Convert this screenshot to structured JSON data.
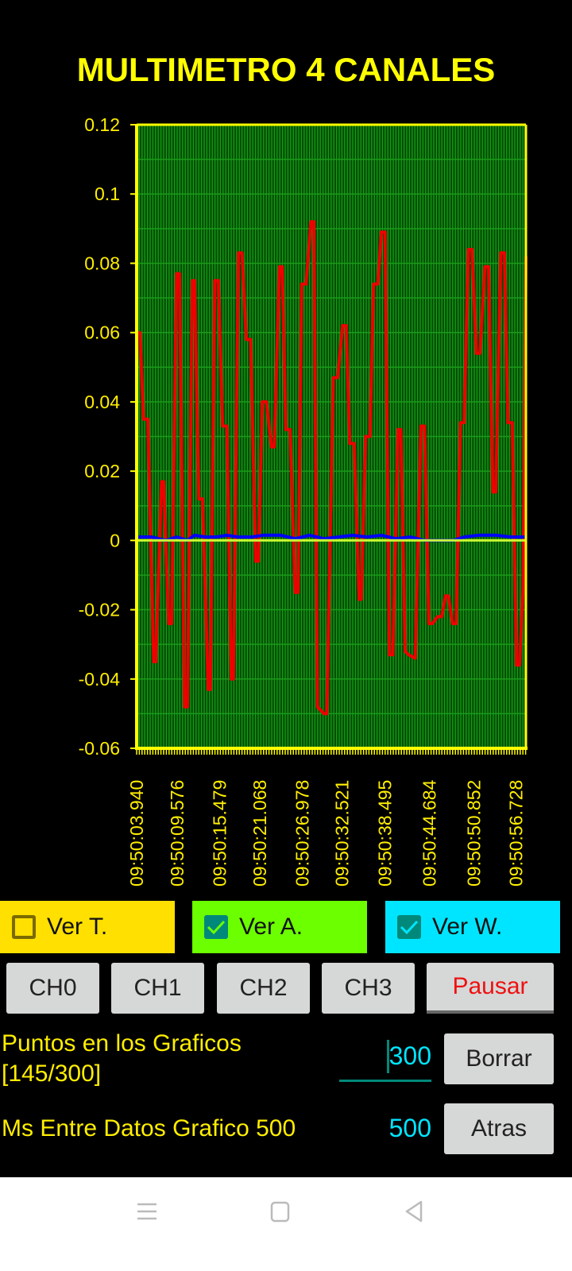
{
  "title": "MULTIMETRO 4 CANALES",
  "checkboxes": [
    {
      "label": "Ver T.",
      "checked": false,
      "color": "#ffe000"
    },
    {
      "label": "Ver A.",
      "checked": true,
      "color": "#6cff00"
    },
    {
      "label": "Ver W.",
      "checked": true,
      "color": "#00e5ff"
    }
  ],
  "channels": [
    "CH0",
    "CH1",
    "CH2",
    "CH3"
  ],
  "pause_label": "Pausar",
  "pause_color": "#ee1111",
  "points": {
    "label": "Puntos en los Graficos",
    "count": "[145/300]",
    "input_value": "300"
  },
  "ms": {
    "label": "Ms Entre Datos Grafico 500",
    "value": "500"
  },
  "clear_label": "Borrar",
  "back_label": "Atras",
  "nav_icons": [
    "menu-icon",
    "home-square-icon",
    "back-triangle-icon"
  ],
  "chart_data": {
    "type": "line",
    "title": "",
    "ylim": [
      -0.06,
      0.12
    ],
    "y_ticks": [
      "0.12",
      "0.1",
      "0.08",
      "0.06",
      "0.04",
      "0.02",
      "0",
      "-0.02",
      "-0.04",
      "-0.06"
    ],
    "y_tick_values": [
      0.12,
      0.1,
      0.08,
      0.06,
      0.04,
      0.02,
      0,
      -0.02,
      -0.04,
      -0.06
    ],
    "x_tick_labels": [
      "09:50:03.940",
      "09:50:09.576",
      "09:50:15.479",
      "09:50:21.068",
      "09:50:26.978",
      "09:50:32.521",
      "09:50:38.495",
      "09:50:44.684",
      "09:50:50.852",
      "09:50:56.728"
    ],
    "x_tick_seconds": [
      3.94,
      9.576,
      15.479,
      21.068,
      26.978,
      32.521,
      38.495,
      44.684,
      50.852,
      56.728
    ],
    "xlim_seconds": [
      3.94,
      58.1
    ],
    "grid": true,
    "plot_bg": "#004d00",
    "grid_color": "#1a9a1a",
    "axis_color": "#ffff00",
    "series": [
      {
        "color": "#ee0000",
        "points": [
          [
            3.9,
            0.06
          ],
          [
            4.4,
            0.06
          ],
          [
            4.9,
            0.035
          ],
          [
            5.5,
            0.035
          ],
          [
            6.3,
            -0.035
          ],
          [
            6.6,
            -0.035
          ],
          [
            7.4,
            0.017
          ],
          [
            7.7,
            0.017
          ],
          [
            8.4,
            -0.024
          ],
          [
            8.8,
            -0.024
          ],
          [
            9.5,
            0.077
          ],
          [
            9.9,
            0.077
          ],
          [
            10.6,
            -0.048
          ],
          [
            11.0,
            -0.048
          ],
          [
            11.7,
            0.075
          ],
          [
            12.0,
            0.075
          ],
          [
            12.6,
            0.012
          ],
          [
            13.1,
            0.012
          ],
          [
            13.9,
            -0.043
          ],
          [
            14.2,
            -0.043
          ],
          [
            14.8,
            0.075
          ],
          [
            15.3,
            0.075
          ],
          [
            15.9,
            0.033
          ],
          [
            16.5,
            0.033
          ],
          [
            17.1,
            -0.04
          ],
          [
            17.4,
            -0.04
          ],
          [
            18.1,
            0.083
          ],
          [
            18.6,
            0.083
          ],
          [
            19.2,
            0.058
          ],
          [
            19.8,
            0.058
          ],
          [
            20.5,
            -0.006
          ],
          [
            20.9,
            -0.006
          ],
          [
            21.4,
            0.04
          ],
          [
            22.0,
            0.04
          ],
          [
            22.7,
            0.027
          ],
          [
            23.1,
            0.027
          ],
          [
            23.8,
            0.079
          ],
          [
            24.2,
            0.079
          ],
          [
            24.7,
            0.032
          ],
          [
            25.3,
            0.032
          ],
          [
            26.0,
            -0.015
          ],
          [
            26.4,
            -0.015
          ],
          [
            26.9,
            0.074
          ],
          [
            27.5,
            0.074
          ],
          [
            28.2,
            0.092
          ],
          [
            28.6,
            0.092
          ],
          [
            29.1,
            -0.048
          ],
          [
            30.0,
            -0.05
          ],
          [
            30.4,
            -0.05
          ],
          [
            31.3,
            0.047
          ],
          [
            31.9,
            0.047
          ],
          [
            32.6,
            0.062
          ],
          [
            33.1,
            0.062
          ],
          [
            33.6,
            0.028
          ],
          [
            34.2,
            0.028
          ],
          [
            34.9,
            -0.017
          ],
          [
            35.2,
            -0.017
          ],
          [
            35.8,
            0.03
          ],
          [
            36.4,
            0.03
          ],
          [
            36.9,
            0.074
          ],
          [
            37.5,
            0.074
          ],
          [
            38.0,
            0.089
          ],
          [
            38.5,
            0.089
          ],
          [
            39.1,
            -0.033
          ],
          [
            39.6,
            -0.033
          ],
          [
            40.3,
            0.032
          ],
          [
            40.7,
            0.032
          ],
          [
            41.3,
            -0.032
          ],
          [
            41.8,
            -0.033
          ],
          [
            42.7,
            -0.034
          ],
          [
            43.5,
            0.033
          ],
          [
            44.0,
            0.033
          ],
          [
            44.6,
            -0.024
          ],
          [
            45.1,
            -0.024
          ],
          [
            45.8,
            -0.022
          ],
          [
            46.4,
            -0.022
          ],
          [
            46.9,
            -0.016
          ],
          [
            47.3,
            -0.016
          ],
          [
            47.9,
            -0.024
          ],
          [
            48.4,
            -0.024
          ],
          [
            49.0,
            0.034
          ],
          [
            49.5,
            0.034
          ],
          [
            50.1,
            0.084
          ],
          [
            50.6,
            0.084
          ],
          [
            51.2,
            0.054
          ],
          [
            51.7,
            0.054
          ],
          [
            52.4,
            0.079
          ],
          [
            52.9,
            0.079
          ],
          [
            53.5,
            0.014
          ],
          [
            53.9,
            0.014
          ],
          [
            54.6,
            0.083
          ],
          [
            55.1,
            0.083
          ],
          [
            55.6,
            0.034
          ],
          [
            56.2,
            0.034
          ],
          [
            56.8,
            -0.036
          ],
          [
            57.2,
            -0.036
          ],
          [
            57.7,
            -0.014
          ],
          [
            58.1,
            0.082
          ]
        ]
      },
      {
        "color": "#0000ff",
        "points": [
          [
            3.9,
            0.001
          ],
          [
            6.0,
            0.001
          ],
          [
            8.0,
            0.0
          ],
          [
            9.5,
            0.001
          ],
          [
            11.0,
            0.0
          ],
          [
            12.0,
            0.0015
          ],
          [
            13.5,
            0.001
          ],
          [
            15.0,
            0.001
          ],
          [
            16.5,
            0.0015
          ],
          [
            18.0,
            0.001
          ],
          [
            20.0,
            0.001
          ],
          [
            21.5,
            0.0015
          ],
          [
            24.0,
            0.0015
          ],
          [
            26.0,
            0.0005
          ],
          [
            28.0,
            0.0015
          ],
          [
            30.0,
            0.0005
          ],
          [
            32.0,
            0.001
          ],
          [
            34.0,
            0.0015
          ],
          [
            36.0,
            0.001
          ],
          [
            38.0,
            0.0015
          ],
          [
            40.0,
            0.0005
          ],
          [
            42.0,
            0.001
          ],
          [
            44.0,
            0.0
          ],
          [
            46.0,
            0.0
          ],
          [
            48.0,
            0.0
          ],
          [
            49.5,
            0.001
          ],
          [
            51.5,
            0.0015
          ],
          [
            54.0,
            0.0015
          ],
          [
            56.0,
            0.001
          ],
          [
            58.1,
            0.001
          ]
        ]
      },
      {
        "color": "#ccff33",
        "points": [
          [
            3.9,
            0.0
          ],
          [
            58.1,
            0.0
          ]
        ]
      }
    ]
  }
}
